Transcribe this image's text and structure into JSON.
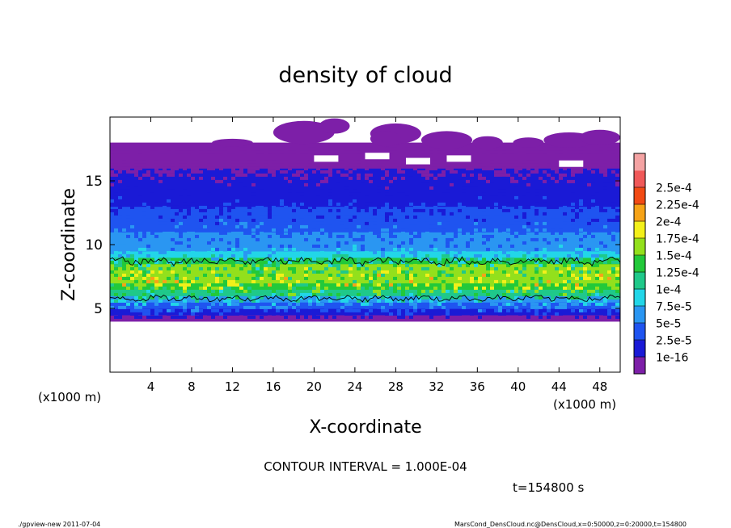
{
  "chart_data": {
    "type": "heatmap",
    "title": "density of cloud",
    "xlabel": "X-coordinate",
    "ylabel": "Z-coordinate",
    "x_unit_left": "(x1000 m)",
    "x_unit_right": "(x1000 m)",
    "xlim": [
      0,
      50
    ],
    "ylim": [
      0,
      20
    ],
    "x_ticks": [
      4,
      8,
      12,
      16,
      20,
      24,
      28,
      32,
      36,
      40,
      44,
      48
    ],
    "y_ticks": [
      5,
      10,
      15
    ],
    "colorbar_labels": [
      "1e-16",
      "2.5e-5",
      "5e-5",
      "7.5e-5",
      "1e-4",
      "1.25e-4",
      "1.5e-4",
      "1.75e-4",
      "2e-4",
      "2.25e-4",
      "2.5e-4"
    ],
    "colorbar_colors": [
      "#7d1fa8",
      "#1a1ad6",
      "#1f54f0",
      "#2a96f2",
      "#22d6e8",
      "#1fc98a",
      "#22c93a",
      "#93e01c",
      "#f3f01a",
      "#f6a317",
      "#f24a14",
      "#f05959",
      "#f4a3a3"
    ],
    "contour_interval_text": "CONTOUR INTERVAL = 1.000E-04",
    "time_text": "t=154800 s",
    "footer_left": "./gpview-new  2011-07-04",
    "footer_right": "MarsCond_DensCloud.nc@DensCloud,x=0:50000,z=0:20000,t=154800",
    "cloud_profile": [
      {
        "z": 4.0,
        "value": 1e-16
      },
      {
        "z": 4.5,
        "value": 3e-05
      },
      {
        "z": 5.0,
        "value": 6e-05
      },
      {
        "z": 5.5,
        "value": 8.5e-05
      },
      {
        "z": 6.0,
        "value": 0.00012
      },
      {
        "z": 6.5,
        "value": 0.00015
      },
      {
        "z": 7.0,
        "value": 0.00017
      },
      {
        "z": 7.5,
        "value": 0.000175
      },
      {
        "z": 8.0,
        "value": 0.00016
      },
      {
        "z": 8.5,
        "value": 0.00014
      },
      {
        "z": 9.0,
        "value": 0.00011
      },
      {
        "z": 9.5,
        "value": 9e-05
      },
      {
        "z": 10.0,
        "value": 7.5e-05
      },
      {
        "z": 11.0,
        "value": 6.5e-05
      },
      {
        "z": 12.0,
        "value": 5.5e-05
      },
      {
        "z": 13.0,
        "value": 4.5e-05
      },
      {
        "z": 14.0,
        "value": 3.5e-05
      },
      {
        "z": 15.0,
        "value": 2.5e-05
      },
      {
        "z": 16.0,
        "value": 1.5e-05
      },
      {
        "z": 17.0,
        "value": 5e-06
      },
      {
        "z": 18.0,
        "value": 1e-16
      }
    ]
  }
}
